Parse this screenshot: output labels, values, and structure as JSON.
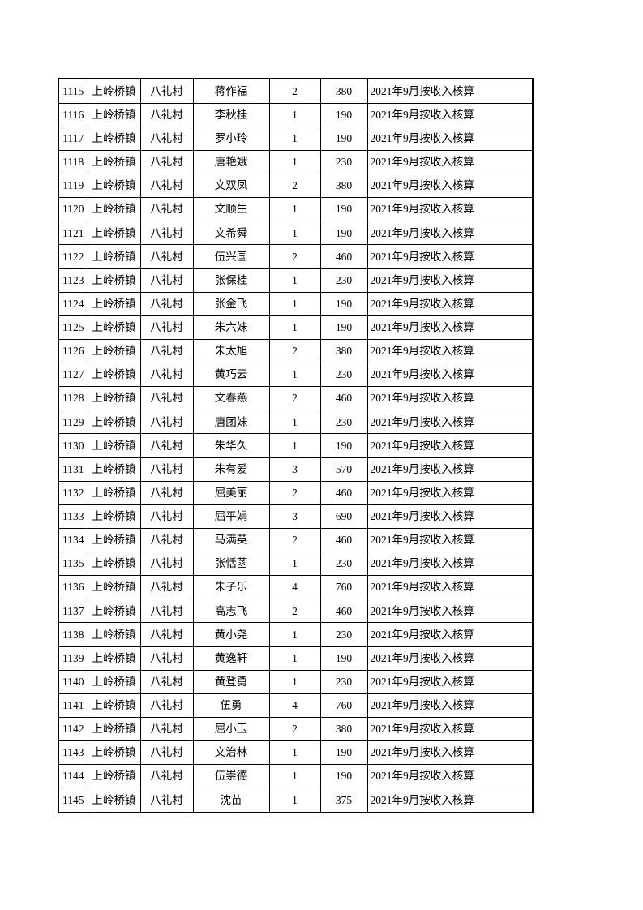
{
  "page": {
    "background_color": "#ffffff",
    "text_color": "#000000",
    "table_border_color": "#000000"
  },
  "table": {
    "rows": [
      [
        "1115",
        "上岭桥镇",
        "八礼村",
        "蒋作福",
        "2",
        "380",
        "2021年9月按收入核算"
      ],
      [
        "1116",
        "上岭桥镇",
        "八礼村",
        "李秋桂",
        "1",
        "190",
        "2021年9月按收入核算"
      ],
      [
        "1117",
        "上岭桥镇",
        "八礼村",
        "罗小玲",
        "1",
        "190",
        "2021年9月按收入核算"
      ],
      [
        "1118",
        "上岭桥镇",
        "八礼村",
        "唐艳娥",
        "1",
        "230",
        "2021年9月按收入核算"
      ],
      [
        "1119",
        "上岭桥镇",
        "八礼村",
        "文双凤",
        "2",
        "380",
        "2021年9月按收入核算"
      ],
      [
        "1120",
        "上岭桥镇",
        "八礼村",
        "文顺生",
        "1",
        "190",
        "2021年9月按收入核算"
      ],
      [
        "1121",
        "上岭桥镇",
        "八礼村",
        "文希舜",
        "1",
        "190",
        "2021年9月按收入核算"
      ],
      [
        "1122",
        "上岭桥镇",
        "八礼村",
        "伍兴国",
        "2",
        "460",
        "2021年9月按收入核算"
      ],
      [
        "1123",
        "上岭桥镇",
        "八礼村",
        "张保桂",
        "1",
        "230",
        "2021年9月按收入核算"
      ],
      [
        "1124",
        "上岭桥镇",
        "八礼村",
        "张金飞",
        "1",
        "190",
        "2021年9月按收入核算"
      ],
      [
        "1125",
        "上岭桥镇",
        "八礼村",
        "朱六妹",
        "1",
        "190",
        "2021年9月按收入核算"
      ],
      [
        "1126",
        "上岭桥镇",
        "八礼村",
        "朱太旭",
        "2",
        "380",
        "2021年9月按收入核算"
      ],
      [
        "1127",
        "上岭桥镇",
        "八礼村",
        "黄巧云",
        "1",
        "230",
        "2021年9月按收入核算"
      ],
      [
        "1128",
        "上岭桥镇",
        "八礼村",
        "文春燕",
        "2",
        "460",
        "2021年9月按收入核算"
      ],
      [
        "1129",
        "上岭桥镇",
        "八礼村",
        "唐团妹",
        "1",
        "230",
        "2021年9月按收入核算"
      ],
      [
        "1130",
        "上岭桥镇",
        "八礼村",
        "朱华久",
        "1",
        "190",
        "2021年9月按收入核算"
      ],
      [
        "1131",
        "上岭桥镇",
        "八礼村",
        "朱有爱",
        "3",
        "570",
        "2021年9月按收入核算"
      ],
      [
        "1132",
        "上岭桥镇",
        "八礼村",
        "屈美丽",
        "2",
        "460",
        "2021年9月按收入核算"
      ],
      [
        "1133",
        "上岭桥镇",
        "八礼村",
        "屈平娟",
        "3",
        "690",
        "2021年9月按收入核算"
      ],
      [
        "1134",
        "上岭桥镇",
        "八礼村",
        "马满英",
        "2",
        "460",
        "2021年9月按收入核算"
      ],
      [
        "1135",
        "上岭桥镇",
        "八礼村",
        "张恬菡",
        "1",
        "230",
        "2021年9月按收入核算"
      ],
      [
        "1136",
        "上岭桥镇",
        "八礼村",
        "朱子乐",
        "4",
        "760",
        "2021年9月按收入核算"
      ],
      [
        "1137",
        "上岭桥镇",
        "八礼村",
        "高志飞",
        "2",
        "460",
        "2021年9月按收入核算"
      ],
      [
        "1138",
        "上岭桥镇",
        "八礼村",
        "黄小尧",
        "1",
        "230",
        "2021年9月按收入核算"
      ],
      [
        "1139",
        "上岭桥镇",
        "八礼村",
        "黄逸轩",
        "1",
        "190",
        "2021年9月按收入核算"
      ],
      [
        "1140",
        "上岭桥镇",
        "八礼村",
        "黄登勇",
        "1",
        "230",
        "2021年9月按收入核算"
      ],
      [
        "1141",
        "上岭桥镇",
        "八礼村",
        "伍勇",
        "4",
        "760",
        "2021年9月按收入核算"
      ],
      [
        "1142",
        "上岭桥镇",
        "八礼村",
        "屈小玉",
        "2",
        "380",
        "2021年9月按收入核算"
      ],
      [
        "1143",
        "上岭桥镇",
        "八礼村",
        "文治林",
        "1",
        "190",
        "2021年9月按收入核算"
      ],
      [
        "1144",
        "上岭桥镇",
        "八礼村",
        "伍崇德",
        "1",
        "190",
        "2021年9月按收入核算"
      ],
      [
        "1145",
        "上岭桥镇",
        "八礼村",
        "沈苗",
        "1",
        "375",
        "2021年9月按收入核算"
      ]
    ]
  }
}
